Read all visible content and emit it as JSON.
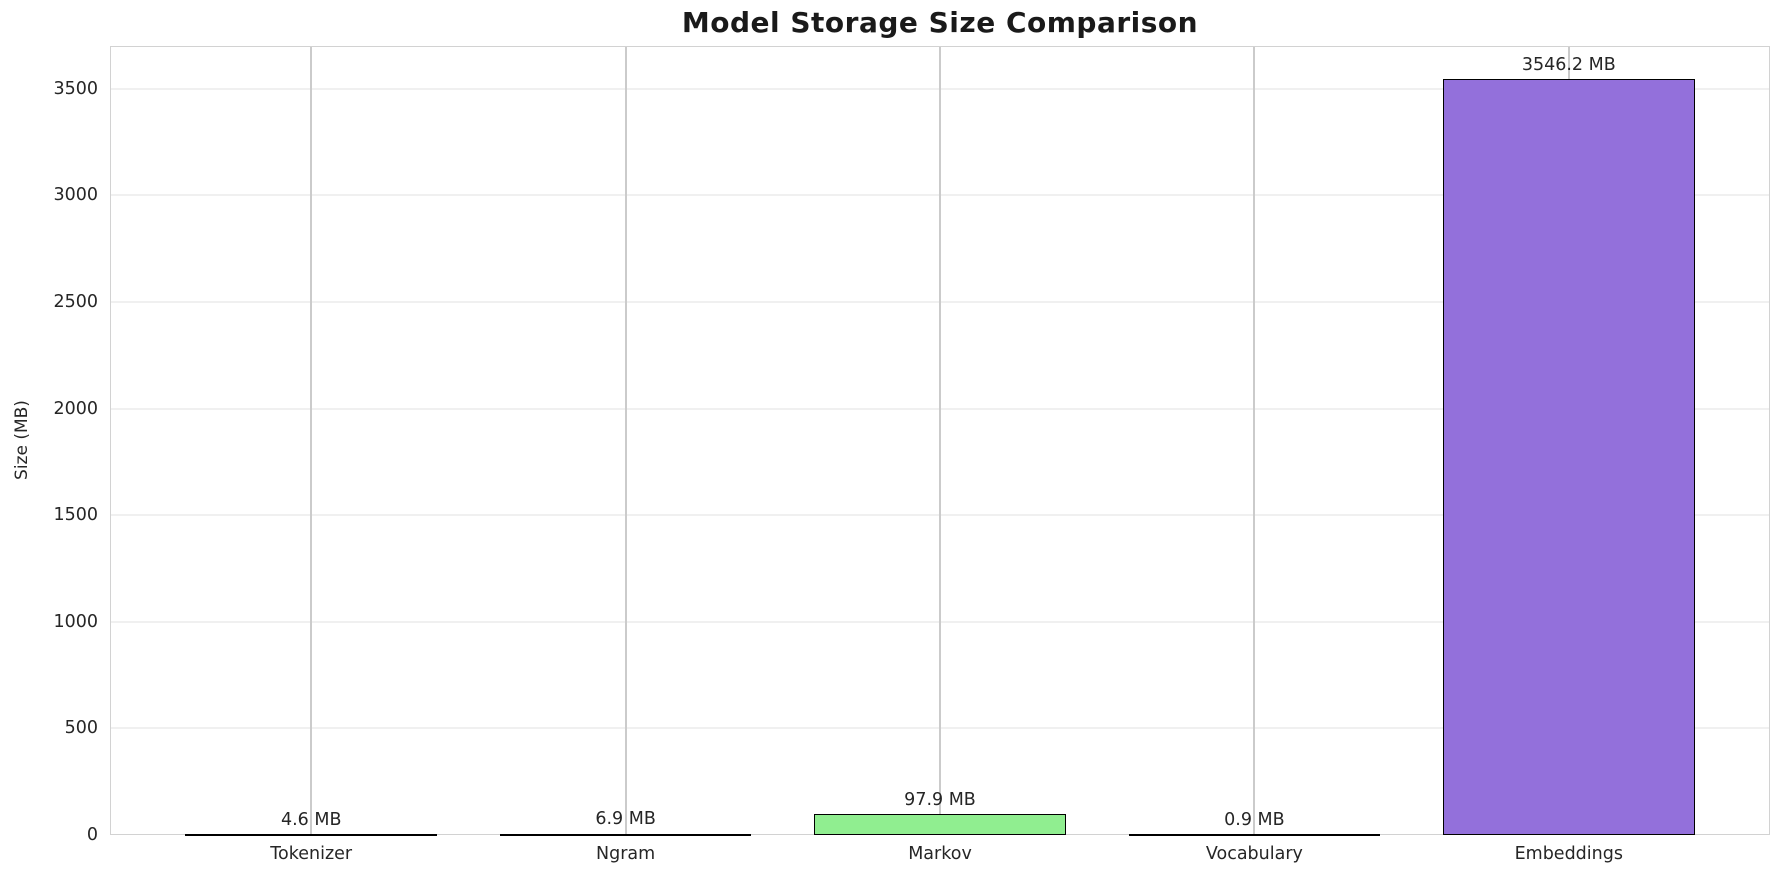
{
  "figure": {
    "title": "Model Storage Size Comparison"
  },
  "chart_data": {
    "type": "bar",
    "title": "Model Storage Size Comparison",
    "categories": [
      "Tokenizer",
      "Ngram",
      "Markov",
      "Vocabulary",
      "Embeddings"
    ],
    "values": [
      4.6,
      6.9,
      97.9,
      0.9,
      3546.2
    ],
    "value_labels": [
      "4.6 MB",
      "6.9 MB",
      "97.9 MB",
      "0.9 MB",
      "3546.2 MB"
    ],
    "bar_colors": [
      "#87CEEB",
      "#F08080",
      "#90EE90",
      "#FFD700",
      "#9370DB"
    ],
    "bar_edge_color": "#000000",
    "xlabel": "",
    "ylabel": "Size (MB)",
    "ylim": [
      0,
      3700
    ],
    "yticks": [
      0,
      500,
      1000,
      1500,
      2000,
      2500,
      3000,
      3500
    ],
    "grid": true,
    "gridline_color_horizontal": "#f0f0f0",
    "gridline_color_vertical": "#cbcbcb",
    "plot_border_color": "#d2d2d2",
    "background_color": "#ffffff",
    "legend_position": "none"
  }
}
